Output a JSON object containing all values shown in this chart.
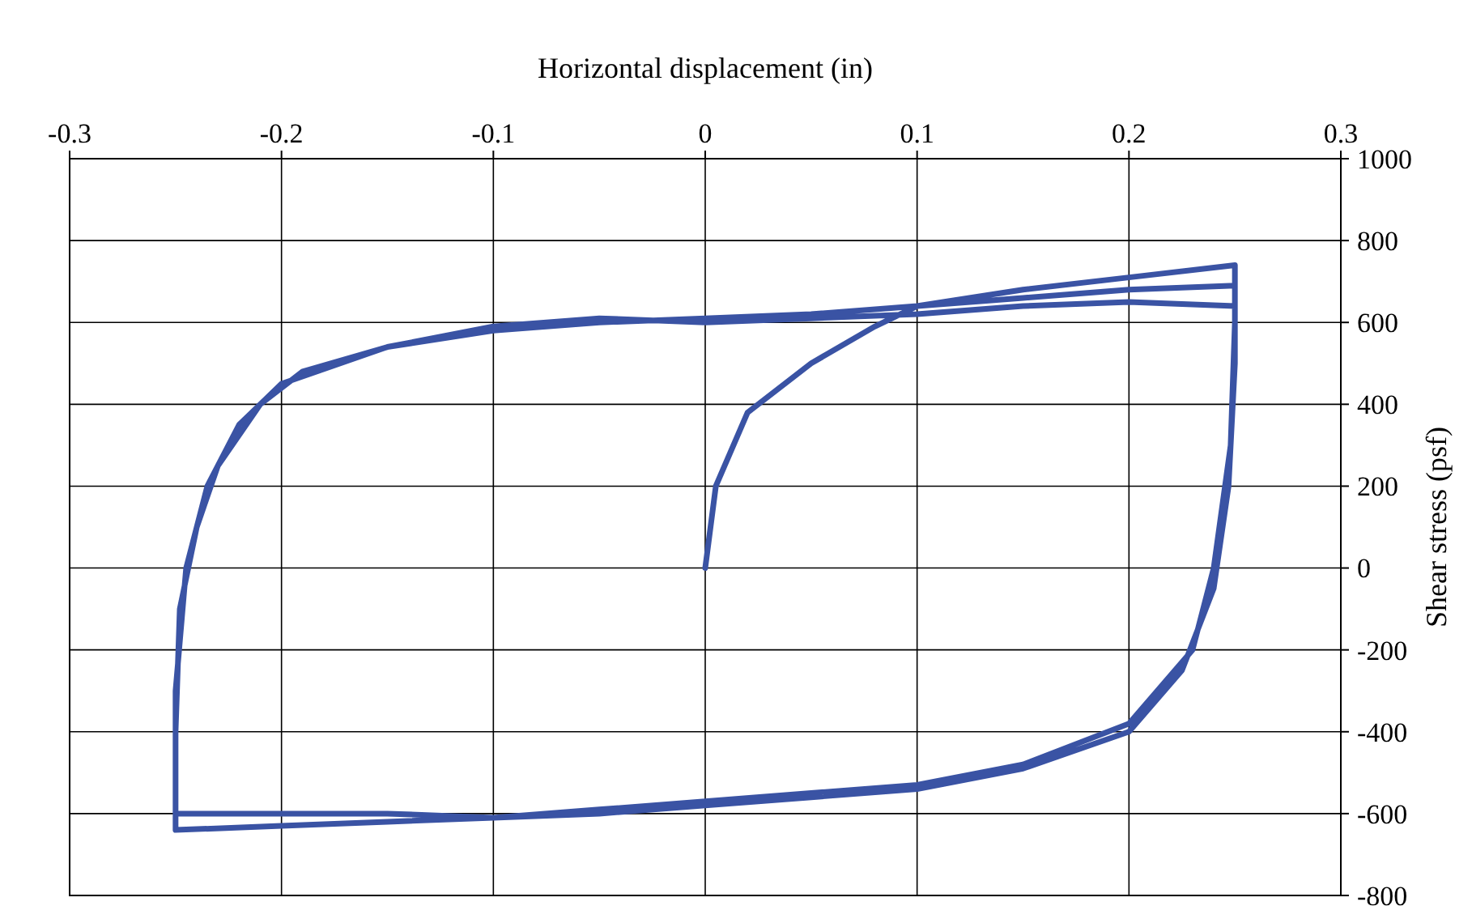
{
  "chart_data": {
    "type": "line",
    "xlabel": "Horizontal displacement (in)",
    "ylabel": "Shear stress (psf)",
    "xlim": [
      -0.3,
      0.3
    ],
    "xticks": [
      -0.3,
      -0.2,
      -0.1,
      0,
      0.1,
      0.2,
      0.3
    ],
    "ylim": [
      -800,
      1000
    ],
    "yticks": [
      -800,
      -600,
      -400,
      -200,
      0,
      200,
      400,
      600,
      800,
      1000
    ],
    "grid": true,
    "marker": "none",
    "line_style": "solid",
    "series": [
      {
        "color": "#3a53a4",
        "x": [
          0,
          0.005,
          0.02,
          0.05,
          0.08,
          0.1,
          0.15,
          0.2,
          0.25,
          0.25,
          0.248,
          0.24,
          0.23,
          0.2,
          0.15,
          0.1,
          0.05,
          0,
          -0.05,
          -0.1,
          -0.15,
          -0.2,
          -0.25,
          -0.25,
          -0.248,
          -0.24,
          -0.23,
          -0.21,
          -0.19,
          -0.15,
          -0.1,
          -0.05,
          0,
          0.05,
          0.1,
          0.15,
          0.2,
          0.25,
          0.25,
          0.247,
          0.24,
          0.225,
          0.2,
          0.15,
          0.1,
          0.05,
          0,
          -0.05,
          -0.1,
          -0.15,
          -0.2,
          -0.25,
          -0.25,
          -0.245,
          -0.235,
          -0.22,
          -0.2,
          -0.15,
          -0.1,
          -0.05,
          0,
          0.05,
          0.1,
          0.15,
          0.2,
          0.25
        ],
        "values": [
          0,
          200,
          380,
          500,
          590,
          640,
          680,
          710,
          740,
          600,
          300,
          0,
          -200,
          -380,
          -480,
          -530,
          -550,
          -570,
          -590,
          -610,
          -620,
          -630,
          -640,
          -400,
          -100,
          100,
          250,
          400,
          480,
          540,
          580,
          600,
          610,
          620,
          640,
          660,
          680,
          690,
          500,
          200,
          -50,
          -250,
          -400,
          -490,
          -540,
          -560,
          -580,
          -600,
          -610,
          -600,
          -600,
          -600,
          -300,
          0,
          200,
          350,
          450,
          540,
          590,
          610,
          600,
          610,
          620,
          640,
          650,
          640
        ]
      }
    ]
  }
}
